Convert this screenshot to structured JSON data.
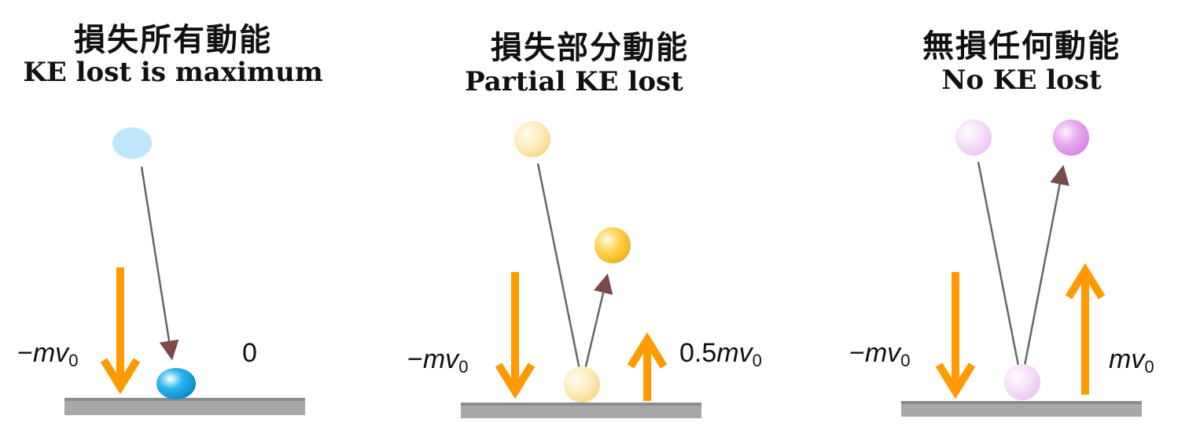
{
  "panels": [
    {
      "title_zh": "損失所有動能",
      "title_en": "KE lost is maximum",
      "incoming_label": {
        "prefix": "−",
        "symbol": "mv",
        "subscript": "0"
      },
      "outgoing_label": {
        "coef": "0",
        "symbol": "",
        "subscript": ""
      },
      "ball_color": "#29b6f0",
      "ball_color_faint": "#bfe6fb"
    },
    {
      "title_zh": "損失部分動能",
      "title_en": "Partial KE lost",
      "incoming_label": {
        "prefix": "−",
        "symbol": "mv",
        "subscript": "0"
      },
      "outgoing_label": {
        "coef": "0.5",
        "symbol": "mv",
        "subscript": "0"
      },
      "ball_color": "#ffd34d",
      "ball_color_faint": "#fdebb8"
    },
    {
      "title_zh": "無損任何動能",
      "title_en": "No KE lost",
      "incoming_label": {
        "prefix": "−",
        "symbol": "mv",
        "subscript": "0"
      },
      "outgoing_label": {
        "coef": "",
        "symbol": "mv",
        "subscript": "0"
      },
      "ball_color": "#e9a8f0",
      "ball_color_faint": "#f5dcf8"
    }
  ],
  "colors": {
    "arrow": "#ff9a00",
    "ground": "#a8a8a8",
    "path": "#666666"
  }
}
